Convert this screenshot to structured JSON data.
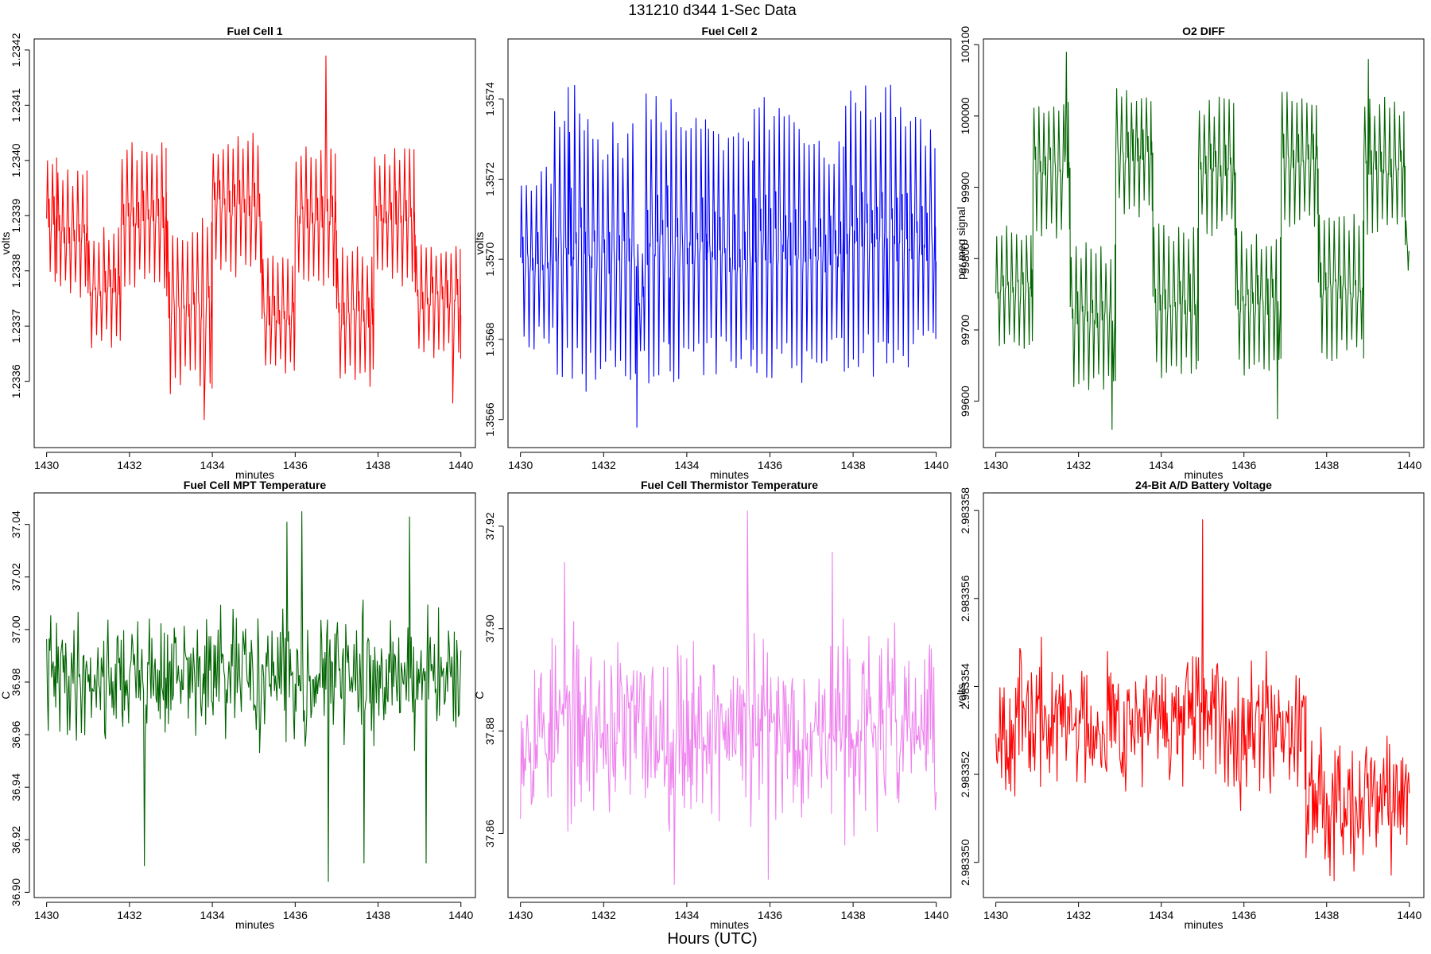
{
  "figure": {
    "title": "131210   d344   1-Sec Data",
    "bottom_label": "Hours (UTC)"
  },
  "chart_data": [
    {
      "type": "line",
      "title": "Fuel Cell 1",
      "xlabel": "minutes",
      "ylabel": "volts",
      "color": "#ff0000",
      "xlim": [
        1429.7,
        1440.35
      ],
      "ylim": [
        1.23348,
        1.23422
      ],
      "xticks": [
        1430,
        1432,
        1434,
        1436,
        1438,
        1440
      ],
      "xtick_labels": [
        "1430",
        "1432",
        "1434",
        "1436",
        "1438",
        "1440"
      ],
      "yticks": [
        1.2336,
        1.2337,
        1.2338,
        1.2339,
        1.234,
        1.2341,
        1.2342
      ],
      "ytick_labels": [
        "1.2336",
        "1.2337",
        "1.2338",
        "1.2339",
        "1.2340",
        "1.2341",
        "1.2342"
      ],
      "shape": {
        "pattern": "oscillate",
        "period": 0.12,
        "segments": [
          [
            1430.0,
            1430.25,
            1.2339,
            0.00012
          ],
          [
            1430.25,
            1431.0,
            1.23387,
            0.00011
          ],
          [
            1431.0,
            1431.8,
            1.23377,
            0.0001
          ],
          [
            1431.8,
            1432.9,
            1.2339,
            0.00013
          ],
          [
            1432.9,
            1434.0,
            1.23374,
            0.00015
          ],
          [
            1434.0,
            1435.2,
            1.23392,
            0.00012
          ],
          [
            1435.2,
            1436.0,
            1.23372,
            0.0001
          ],
          [
            1436.0,
            1437.0,
            1.2339,
            0.00012
          ],
          [
            1437.0,
            1437.9,
            1.23372,
            0.00012
          ],
          [
            1437.9,
            1438.9,
            1.2339,
            0.00012
          ],
          [
            1438.9,
            1440.0,
            1.23375,
            0.0001
          ]
        ],
        "spikes": [
          [
            1433.8,
            1.23353
          ],
          [
            1436.75,
            1.23419
          ],
          [
            1439.8,
            1.23356
          ],
          [
            1437.8,
            1.23359
          ]
        ],
        "seed": 11
      }
    },
    {
      "type": "line",
      "title": "Fuel Cell 2",
      "xlabel": "minutes",
      "ylabel": "volts",
      "color": "#0000ff",
      "xlim": [
        1429.7,
        1440.35
      ],
      "ylim": [
        1.35653,
        1.35755
      ],
      "xticks": [
        1430,
        1432,
        1434,
        1436,
        1438,
        1440
      ],
      "xtick_labels": [
        "1430",
        "1432",
        "1434",
        "1436",
        "1438",
        "1440"
      ],
      "yticks": [
        1.3566,
        1.3568,
        1.357,
        1.3572,
        1.3574
      ],
      "ytick_labels": [
        "1.3566",
        "1.3568",
        "1.3570",
        "1.3572",
        "1.3574"
      ],
      "shape": {
        "pattern": "oscillate",
        "period": 0.12,
        "segments": [
          [
            1430.0,
            1430.8,
            1.357,
            0.00022
          ],
          [
            1430.8,
            1431.6,
            1.35705,
            0.00035
          ],
          [
            1431.6,
            1432.8,
            1.35702,
            0.0003
          ],
          [
            1432.8,
            1433.0,
            1.3569,
            0.00015
          ],
          [
            1433.0,
            1434.5,
            1.35705,
            0.00034
          ],
          [
            1434.5,
            1435.6,
            1.35702,
            0.00028
          ],
          [
            1435.6,
            1436.8,
            1.35705,
            0.00034
          ],
          [
            1436.8,
            1437.8,
            1.35702,
            0.00028
          ],
          [
            1437.8,
            1439.0,
            1.35708,
            0.00034
          ],
          [
            1439.0,
            1440.0,
            1.35705,
            0.0003
          ]
        ],
        "spikes": [
          [
            1431.15,
            1.35743
          ],
          [
            1432.8,
            1.35658
          ],
          [
            1433.6,
            1.35672
          ],
          [
            1438.8,
            1.35674
          ]
        ],
        "seed": 23
      }
    },
    {
      "type": "line",
      "title": "O2 DIFF",
      "xlabel": "minutes",
      "ylabel": "per meg signal",
      "color": "#006400",
      "xlim": [
        1429.7,
        1440.35
      ],
      "ylim": [
        99535,
        100108
      ],
      "xticks": [
        1430,
        1432,
        1434,
        1436,
        1438,
        1440
      ],
      "xtick_labels": [
        "1430",
        "1432",
        "1434",
        "1436",
        "1438",
        "1440"
      ],
      "yticks": [
        99600,
        99700,
        99800,
        99900,
        100000,
        100100
      ],
      "ytick_labels": [
        "99600",
        "99700",
        "99800",
        "99900",
        "100000",
        "100100"
      ],
      "shape": {
        "pattern": "oscillate",
        "period": 0.12,
        "segments": [
          [
            1430.0,
            1430.9,
            99760,
            85
          ],
          [
            1430.9,
            1431.8,
            99930,
            95
          ],
          [
            1431.8,
            1432.9,
            99720,
            95
          ],
          [
            1432.9,
            1433.8,
            99950,
            85
          ],
          [
            1433.8,
            1434.9,
            99740,
            100
          ],
          [
            1434.9,
            1435.8,
            99930,
            90
          ],
          [
            1435.8,
            1436.9,
            99740,
            95
          ],
          [
            1436.9,
            1437.8,
            99940,
            90
          ],
          [
            1437.8,
            1438.9,
            99760,
            95
          ],
          [
            1438.9,
            1439.9,
            99930,
            90
          ],
          [
            1439.9,
            1440.0,
            99820,
            40
          ]
        ],
        "spikes": [
          [
            1432.8,
            99560
          ],
          [
            1436.8,
            99575
          ],
          [
            1431.7,
            100090
          ],
          [
            1439.0,
            100080
          ]
        ],
        "seed": 37
      }
    },
    {
      "type": "line",
      "title": "Fuel Cell MPT Temperature",
      "xlabel": "minutes",
      "ylabel": "C",
      "color": "#006400",
      "xlim": [
        1429.7,
        1440.35
      ],
      "ylim": [
        36.898,
        37.052
      ],
      "xticks": [
        1430,
        1432,
        1434,
        1436,
        1438,
        1440
      ],
      "xtick_labels": [
        "1430",
        "1432",
        "1434",
        "1436",
        "1438",
        "1440"
      ],
      "yticks": [
        36.9,
        36.92,
        36.94,
        36.96,
        36.98,
        37.0,
        37.02,
        37.04
      ],
      "ytick_labels": [
        "36.90",
        "36.92",
        "36.94",
        "36.96",
        "36.98",
        "37.00",
        "37.02",
        "37.04"
      ],
      "shape": {
        "pattern": "noise",
        "dt": 0.02,
        "segments": [
          [
            1430.0,
            1440.0,
            36.982,
            0.014
          ]
        ],
        "spikes": [
          [
            1432.35,
            36.91
          ],
          [
            1436.15,
            37.045
          ],
          [
            1436.8,
            36.904
          ],
          [
            1437.65,
            36.911
          ],
          [
            1439.15,
            36.911
          ],
          [
            1435.8,
            37.041
          ],
          [
            1438.75,
            37.043
          ]
        ],
        "seed": 41
      }
    },
    {
      "type": "line",
      "title": "Fuel Cell Thermistor Temperature",
      "xlabel": "minutes",
      "ylabel": "C",
      "color": "#ee82ee",
      "xlim": [
        1429.7,
        1440.35
      ],
      "ylim": [
        37.8475,
        37.9265
      ],
      "xticks": [
        1430,
        1432,
        1434,
        1436,
        1438,
        1440
      ],
      "xtick_labels": [
        "1430",
        "1432",
        "1434",
        "1436",
        "1438",
        "1440"
      ],
      "yticks": [
        37.86,
        37.88,
        37.9,
        37.92
      ],
      "ytick_labels": [
        "37.86",
        "37.88",
        "37.90",
        "37.92"
      ],
      "shape": {
        "pattern": "noise",
        "dt": 0.02,
        "segments": [
          [
            1430.0,
            1440.0,
            37.8805,
            0.0105
          ]
        ],
        "spikes": [
          [
            1435.45,
            37.923
          ],
          [
            1433.7,
            37.85
          ],
          [
            1435.95,
            37.851
          ],
          [
            1437.5,
            37.915
          ],
          [
            1431.05,
            37.913
          ]
        ],
        "seed": 53
      }
    },
    {
      "type": "line",
      "title": "24-Bit A/D Battery Voltage",
      "xlabel": "minutes",
      "ylabel": "volts",
      "color": "#ff0000",
      "xlim": [
        1429.7,
        1440.35
      ],
      "ylim": [
        2.9833492,
        2.9833584
      ],
      "xticks": [
        1430,
        1432,
        1434,
        1436,
        1438,
        1440
      ],
      "xtick_labels": [
        "1430",
        "1432",
        "1434",
        "1436",
        "1438",
        "1440"
      ],
      "yticks": [
        2.98335,
        2.983352,
        2.983354,
        2.983356,
        2.983358
      ],
      "ytick_labels": [
        "2.983350",
        "2.983352",
        "2.983354",
        "2.983356",
        "2.983358"
      ],
      "shape": {
        "pattern": "noise",
        "dt": 0.02,
        "segments": [
          [
            1430.0,
            1437.5,
            2.9833532,
            9e-07
          ],
          [
            1437.5,
            1440.0,
            2.9833515,
            9e-07
          ]
        ],
        "spikes": [
          [
            1435.0,
            2.9833578
          ],
          [
            1430.6,
            2.9833548
          ],
          [
            1432.7,
            2.9833548
          ],
          [
            1439.55,
            2.9833497
          ],
          [
            1430.45,
            2.9833515
          ]
        ],
        "seed": 67
      }
    }
  ]
}
